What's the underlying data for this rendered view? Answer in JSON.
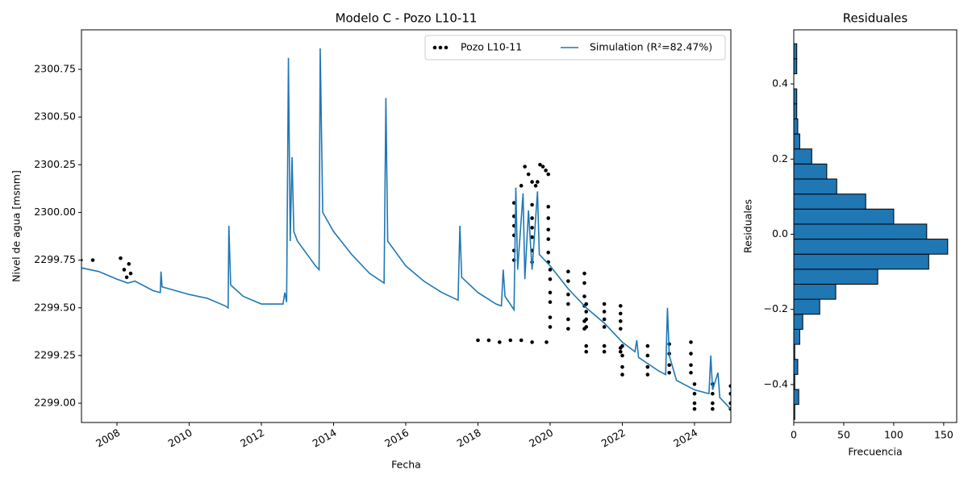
{
  "chart_data": [
    {
      "type": "line",
      "title": "Modelo C - Pozo L10-11",
      "xlabel": "Fecha",
      "ylabel": "Nivel de agua [msnm]",
      "xlim": [
        2007.017,
        2025.006
      ],
      "ylim": [
        2298.899,
        2300.957
      ],
      "xticks": [
        2008,
        2010,
        2012,
        2014,
        2016,
        2018,
        2020,
        2022,
        2024
      ],
      "yticks": [
        {
          "value": 2299,
          "label": "2299.00"
        },
        2299.25,
        {
          "value": 2299.5,
          "label": "2299.50"
        },
        2299.75,
        {
          "value": 2300,
          "label": "2300.00"
        },
        2300.25,
        {
          "value": 2300.5,
          "label": "2300.50"
        },
        2300.75
      ],
      "grid": false,
      "legend": "upper right",
      "series": [
        {
          "name": "Pozo L10-11",
          "color": "#000000",
          "marker": ".",
          "x": [
            2007.0,
            2007.33,
            2008.1,
            2008.2,
            2008.27,
            2008.33,
            2008.38,
            2018.0,
            2018.3,
            2018.6,
            2018.9,
            2019.2,
            2019.5,
            2019.9,
            2019.0,
            2019.5,
            2019.95,
            2019.0,
            2019.5,
            2019.95,
            2019.0,
            2019.5,
            2019.95,
            2019.0,
            2019.5,
            2019.95,
            2019.0,
            2019.5,
            2019.95,
            2019.0,
            2019.5,
            2019.95,
            2019.2,
            2019.3,
            2019.4,
            2019.5,
            2019.6,
            2019.65,
            2019.72,
            2019.8,
            2019.88,
            2019.95,
            2020.0,
            2020.5,
            2020.95,
            2020.0,
            2020.5,
            2020.95,
            2020.0,
            2020.5,
            2020.95,
            2020.0,
            2020.5,
            2020.95,
            2020.0,
            2020.5,
            2020.95,
            2020.0,
            2020.5,
            2020.95,
            2021.0,
            2021.5,
            2021.95,
            2021.0,
            2021.5,
            2021.95,
            2021.0,
            2021.5,
            2021.95,
            2021.0,
            2021.5,
            2021.95,
            2021.0,
            2021.5,
            2021.95,
            2021.0,
            2021.5,
            2021.95,
            2022.0,
            2022.7,
            2023.3,
            2023.9,
            2022.0,
            2022.7,
            2023.3,
            2023.9,
            2022.0,
            2022.7,
            2023.3,
            2023.9,
            2022.0,
            2022.7,
            2023.3,
            2023.9,
            2024.0,
            2024.5,
            2025.0,
            2024.0,
            2024.5,
            2025.0,
            2024.0,
            2024.5,
            2025.0,
            2024.0,
            2024.5,
            2025.0
          ],
          "values": [
            2299.75,
            2299.75,
            2299.76,
            2299.7,
            2299.66,
            2299.73,
            2299.68,
            2299.33,
            2299.33,
            2299.32,
            2299.33,
            2299.33,
            2299.32,
            2299.32,
            2300.05,
            2300.04,
            2300.03,
            2299.98,
            2299.97,
            2299.97,
            2299.93,
            2299.92,
            2299.91,
            2299.88,
            2299.87,
            2299.86,
            2299.8,
            2299.8,
            2299.79,
            2299.75,
            2299.74,
            2299.74,
            2300.14,
            2300.24,
            2300.2,
            2300.16,
            2300.14,
            2300.16,
            2300.25,
            2300.24,
            2300.22,
            2300.2,
            2299.7,
            2299.69,
            2299.68,
            2299.65,
            2299.64,
            2299.63,
            2299.58,
            2299.57,
            2299.56,
            2299.53,
            2299.52,
            2299.51,
            2299.45,
            2299.44,
            2299.43,
            2299.4,
            2299.39,
            2299.39,
            2299.52,
            2299.52,
            2299.51,
            2299.48,
            2299.48,
            2299.47,
            2299.44,
            2299.44,
            2299.43,
            2299.4,
            2299.4,
            2299.39,
            2299.3,
            2299.3,
            2299.29,
            2299.27,
            2299.27,
            2299.27,
            2299.3,
            2299.3,
            2299.31,
            2299.32,
            2299.25,
            2299.25,
            2299.26,
            2299.26,
            2299.19,
            2299.19,
            2299.2,
            2299.2,
            2299.15,
            2299.15,
            2299.16,
            2299.16,
            2299.1,
            2299.1,
            2299.09,
            2299.05,
            2299.05,
            2299.05,
            2299.0,
            2299.0,
            2299.0,
            2298.97,
            2298.97,
            2298.97
          ]
        },
        {
          "name": "Simulation (R²=82.47%)",
          "color": "#1f77b4",
          "linestyle": "-",
          "x": [
            2007.0,
            2007.5,
            2008.0,
            2008.3,
            2008.5,
            2009.0,
            2009.2,
            2009.22,
            2009.25,
            2010.0,
            2010.5,
            2011.0,
            2011.08,
            2011.1,
            2011.15,
            2011.5,
            2012.0,
            2012.6,
            2012.65,
            2012.7,
            2012.75,
            2012.8,
            2012.85,
            2012.9,
            2013.0,
            2013.5,
            2013.6,
            2013.63,
            2013.7,
            2014.0,
            2014.5,
            2015.0,
            2015.4,
            2015.45,
            2015.5,
            2016.0,
            2016.5,
            2017.0,
            2017.45,
            2017.5,
            2017.55,
            2018.0,
            2018.5,
            2018.65,
            2018.7,
            2018.75,
            2019.0,
            2019.05,
            2019.1,
            2019.25,
            2019.3,
            2019.4,
            2019.5,
            2019.65,
            2019.7,
            2020.0,
            2020.5,
            2021.0,
            2021.5,
            2022.0,
            2022.35,
            2022.4,
            2022.45,
            2023.0,
            2023.2,
            2023.25,
            2023.3,
            2023.5,
            2024.0,
            2024.4,
            2024.45,
            2024.5,
            2024.65,
            2024.7,
            2025.0
          ],
          "values": [
            2299.71,
            2299.69,
            2299.65,
            2299.63,
            2299.64,
            2299.59,
            2299.58,
            2299.69,
            2299.61,
            2299.57,
            2299.55,
            2299.51,
            2299.5,
            2299.93,
            2299.62,
            2299.56,
            2299.52,
            2299.52,
            2299.58,
            2299.53,
            2300.81,
            2299.85,
            2300.29,
            2299.9,
            2299.85,
            2299.72,
            2299.7,
            2300.86,
            2300.0,
            2299.9,
            2299.78,
            2299.68,
            2299.63,
            2300.6,
            2299.85,
            2299.72,
            2299.64,
            2299.58,
            2299.54,
            2299.93,
            2299.66,
            2299.58,
            2299.52,
            2299.51,
            2299.7,
            2299.56,
            2299.49,
            2300.13,
            2299.7,
            2300.1,
            2299.65,
            2300.01,
            2299.7,
            2300.11,
            2299.78,
            2299.72,
            2299.6,
            2299.5,
            2299.42,
            2299.32,
            2299.27,
            2299.33,
            2299.24,
            2299.17,
            2299.15,
            2299.5,
            2299.25,
            2299.12,
            2299.07,
            2299.05,
            2299.25,
            2299.07,
            2299.16,
            2299.03,
            2298.97
          ]
        }
      ]
    },
    {
      "type": "histogram",
      "title": "Residuales",
      "xlabel": "Frecuencia",
      "ylabel": "Residuales",
      "orientation": "horizontal",
      "color": "#1f77b4",
      "edgecolor": "#000000",
      "xlim": [
        0,
        163
      ],
      "ylim": [
        -0.501,
        0.544
      ],
      "xticks": [
        0,
        50,
        100,
        150
      ],
      "yticks": [
        {
          "value": -0.4,
          "label": "−0.4"
        },
        {
          "value": -0.2,
          "label": "−0.2"
        },
        {
          "value": 0,
          "label": "0.0"
        },
        0.2,
        0.4
      ],
      "bins": [
        -0.493,
        -0.453,
        -0.413,
        -0.373,
        -0.333,
        -0.293,
        -0.253,
        -0.213,
        -0.173,
        -0.133,
        -0.093,
        -0.053,
        -0.013,
        0.027,
        0.067,
        0.107,
        0.147,
        0.187,
        0.227,
        0.267,
        0.307,
        0.347,
        0.387,
        0.427,
        0.467,
        0.507
      ],
      "counts": [
        1,
        5,
        1,
        4,
        1,
        6,
        9,
        26,
        42,
        84,
        135,
        154,
        133,
        100,
        72,
        43,
        33,
        18,
        6,
        4,
        3,
        3,
        0,
        3,
        3
      ]
    }
  ]
}
